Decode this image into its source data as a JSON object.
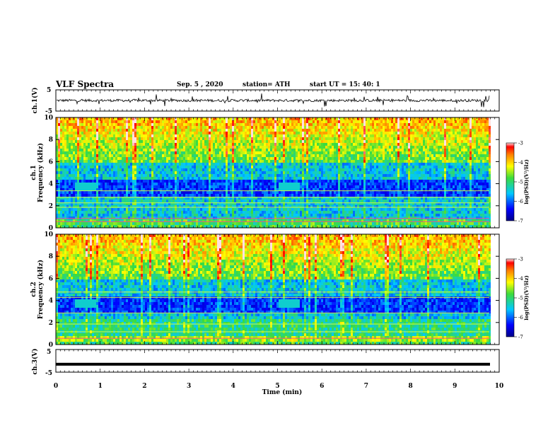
{
  "header": {
    "title": "VLF Spectra",
    "date": "Sep. 5  , 2020",
    "station": "station= ATH",
    "start": "start  UT =   15: 40: 1"
  },
  "chart_data": [
    {
      "type": "line",
      "name": "ch1-waveform",
      "ylabel": "ch.1(V)",
      "ylim": [
        -5,
        5
      ],
      "yticks": [
        "5",
        "-5"
      ],
      "xlim": [
        0,
        10
      ]
    },
    {
      "type": "heatmap",
      "name": "ch1-spectrogram",
      "ylabel": "ch.1\nFrequency (kHz)",
      "ylim": [
        0,
        10
      ],
      "yticks": [
        "0",
        "2",
        "4",
        "6",
        "8",
        "10"
      ],
      "xlim": [
        0,
        10
      ],
      "colorbar": {
        "label": "log(PSD)(V²/Hz)",
        "ticks": [
          "-3",
          "-4",
          "-5",
          "-6",
          "-7"
        ],
        "range": [
          -7,
          -3
        ]
      }
    },
    {
      "type": "heatmap",
      "name": "ch2-spectrogram",
      "ylabel": "ch.2\nFrequency (kHz)",
      "ylim": [
        0,
        10
      ],
      "yticks": [
        "0",
        "2",
        "4",
        "6",
        "8",
        "10"
      ],
      "xlim": [
        0,
        10
      ],
      "colorbar": {
        "label": "log(PSD)(V²/Hz)",
        "ticks": [
          "-3",
          "-4",
          "-5",
          "-6",
          "-7"
        ],
        "range": [
          -7,
          -3
        ]
      }
    },
    {
      "type": "line",
      "name": "ch3-waveform",
      "ylabel": "ch.3(V)",
      "ylim": [
        -5,
        5
      ],
      "yticks": [
        "5",
        "-5"
      ],
      "xlim": [
        0,
        10
      ],
      "level": -1.5
    }
  ],
  "xaxis": {
    "label": "Time  (min)",
    "ticks": [
      "0",
      "1",
      "2",
      "3",
      "4",
      "5",
      "6",
      "7",
      "8",
      "9",
      "10"
    ]
  }
}
